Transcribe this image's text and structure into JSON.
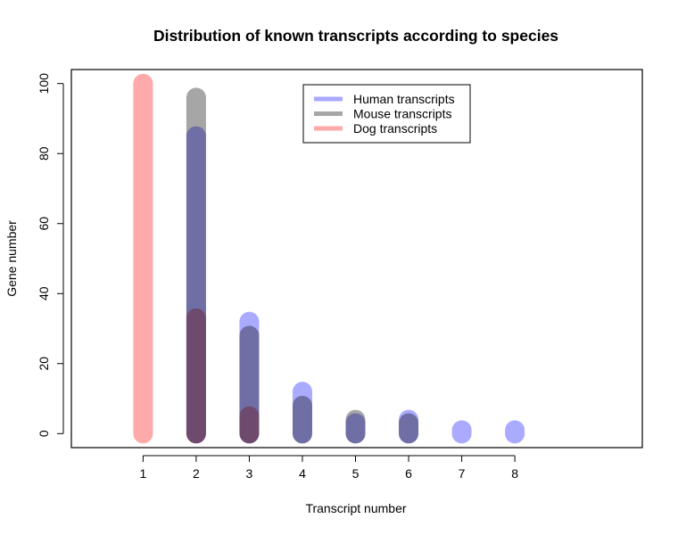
{
  "chart_data": {
    "type": "bar",
    "title": "Distribution of known transcripts according to species",
    "xlabel": "Transcript number",
    "ylabel": "Gene number",
    "x_ticks": [
      1,
      2,
      3,
      4,
      5,
      6,
      7,
      8
    ],
    "y_ticks": [
      0,
      20,
      40,
      60,
      80,
      100
    ],
    "xlim": [
      -0.35,
      10.4
    ],
    "ylim": [
      -4,
      104
    ],
    "grid": false,
    "legend_position": "top-center",
    "series": [
      {
        "name": "Mouse transcripts",
        "color": "#a6a6a6",
        "x": [
          2,
          3,
          4,
          5,
          6
        ],
        "values": [
          96,
          28,
          8,
          4,
          3
        ]
      },
      {
        "name": "Human transcripts",
        "color": "#aaaaff",
        "x": [
          2,
          3,
          4,
          5,
          6,
          7,
          8
        ],
        "values": [
          85,
          32,
          12,
          3,
          4,
          1,
          1
        ]
      },
      {
        "name": "Dog transcripts",
        "color": "#ffaaaa",
        "x": [
          1,
          2,
          3
        ],
        "values": [
          100,
          33,
          5
        ]
      }
    ],
    "legend_order": [
      "Human transcripts",
      "Mouse transcripts",
      "Dog transcripts"
    ]
  }
}
